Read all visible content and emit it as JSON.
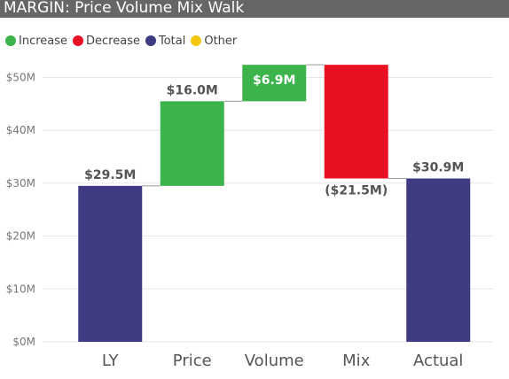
{
  "title": "MARGIN: Price Volume Mix Walk",
  "legend": [
    {
      "label": "Increase",
      "color": "#3cb44b"
    },
    {
      "label": "Decrease",
      "color": "#e81123"
    },
    {
      "label": "Total",
      "color": "#3f3b82"
    },
    {
      "label": "Other",
      "color": "#f2c811"
    }
  ],
  "chart_data": {
    "type": "bar",
    "subtype": "waterfall",
    "title": "MARGIN: Price Volume Mix Walk",
    "categories": [
      "LY",
      "Price",
      "Volume",
      "Mix",
      "Actual"
    ],
    "values": [
      29.5,
      16.0,
      6.9,
      -21.5,
      30.9
    ],
    "kinds": [
      "Total",
      "Increase",
      "Increase",
      "Decrease",
      "Total"
    ],
    "data_labels": [
      "$29.5M",
      "$16.0M",
      "$6.9M",
      "($21.5M)",
      "$30.9M"
    ],
    "yticks": [
      "$0M",
      "$10M",
      "$20M",
      "$30M",
      "$40M",
      "$50M"
    ],
    "ytick_values": [
      0,
      10,
      20,
      30,
      40,
      50
    ],
    "ylim": [
      0,
      54
    ],
    "grid": true,
    "legend_position": "top-left",
    "colors": {
      "Increase": "#3cb44b",
      "Decrease": "#e81123",
      "Total": "#3f3b82",
      "Other": "#f2c811"
    }
  }
}
